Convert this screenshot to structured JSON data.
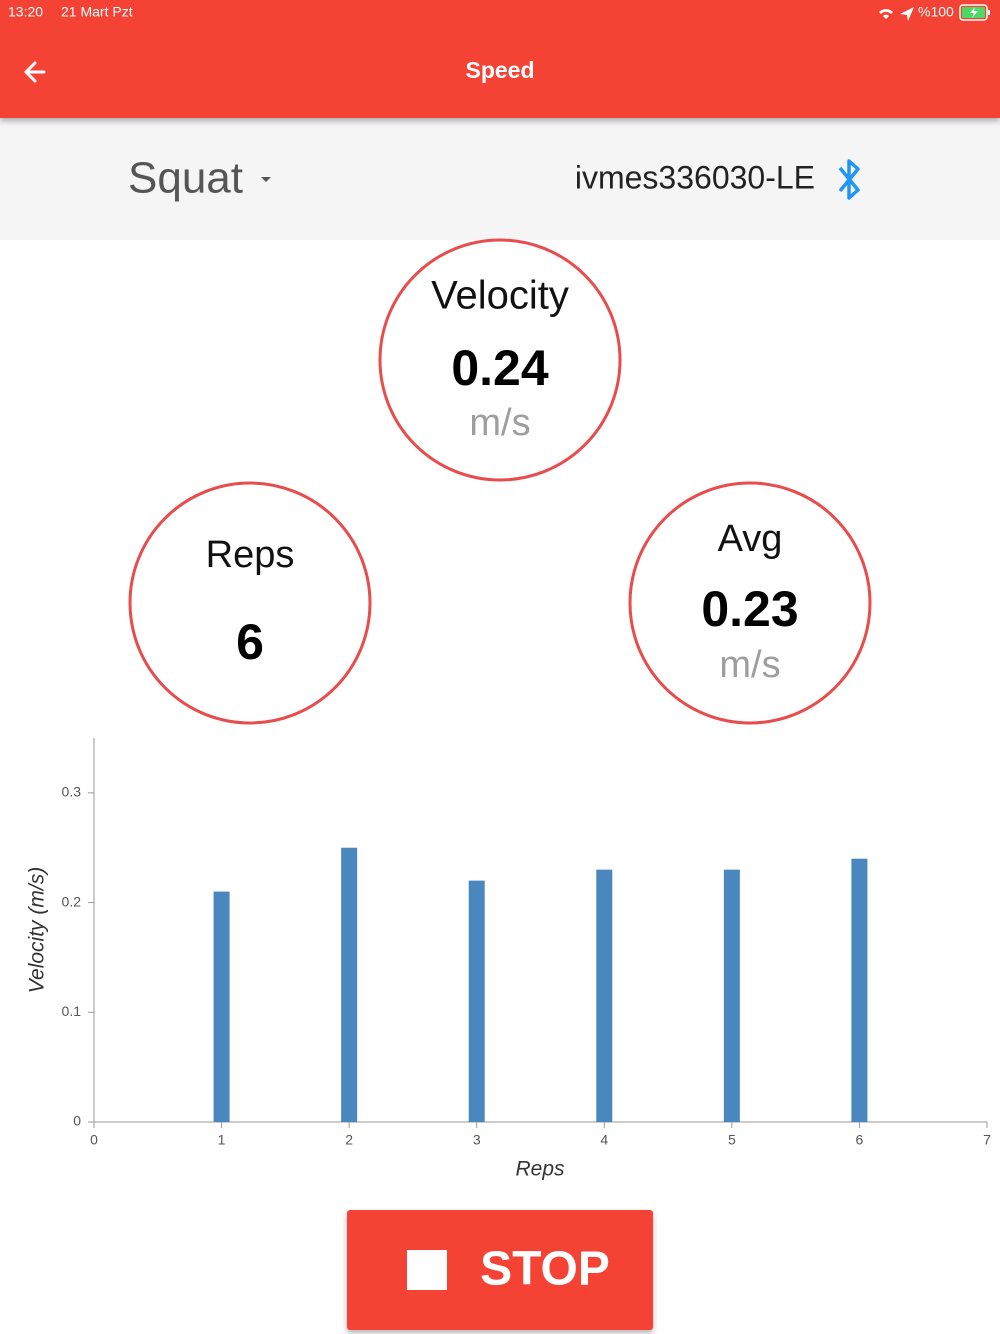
{
  "status_bar": {
    "time": "13:20",
    "date": "21 Mart Pzt",
    "battery": "%100"
  },
  "app_bar": {
    "title": "Speed"
  },
  "selector": {
    "exercise": "Squat",
    "device": "ivmes336030-LE"
  },
  "stats": {
    "velocity": {
      "label": "Velocity",
      "value": 0.24,
      "unit": "m/s"
    },
    "reps": {
      "label": "Reps",
      "value": 6
    },
    "avg": {
      "label": "Avg",
      "value": 0.23,
      "unit": "m/s"
    }
  },
  "chart_data": {
    "type": "bar",
    "x_label": "Reps",
    "y_label": "Velocity (m/s)",
    "x": [
      1,
      2,
      3,
      4,
      5,
      6
    ],
    "values": [
      0.21,
      0.25,
      0.22,
      0.23,
      0.23,
      0.24
    ],
    "color": "#4a87be",
    "xlim": [
      0,
      7
    ],
    "xticks": [
      0,
      1,
      2,
      3,
      4,
      5,
      6,
      7
    ],
    "ylim": [
      0,
      0.35
    ],
    "yticks": [
      0,
      0.1,
      0.2,
      0.3
    ]
  },
  "button": {
    "label": "STOP"
  }
}
